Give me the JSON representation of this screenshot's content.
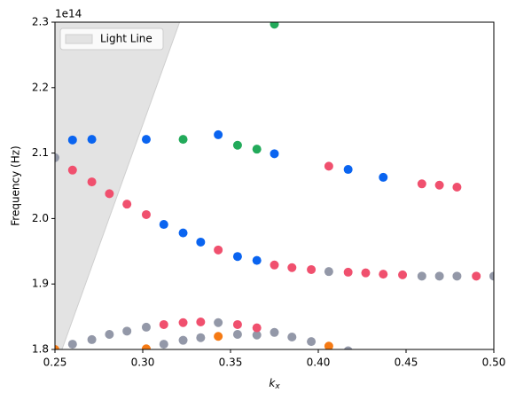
{
  "chart_data": {
    "type": "scatter",
    "xlabel": "kx",
    "ylabel": "Frequency (Hz)",
    "y_offset_label": "1e14",
    "xlim": [
      0.25,
      0.5
    ],
    "ylim": [
      1.8,
      2.3
    ],
    "xticks": [
      0.25,
      {
        "value": 0.3,
        "label": "0.30"
      },
      0.35,
      {
        "value": 0.4,
        "label": "0.40"
      },
      0.45,
      {
        "value": 0.5,
        "label": "0.50"
      }
    ],
    "yticks": [
      1.8,
      1.9,
      {
        "value": 2.0,
        "label": "2.0"
      },
      2.1,
      2.2,
      2.3
    ],
    "legend": "upper left",
    "series": [
      {
        "name": "Light Line",
        "fill": true,
        "color": "#e3e3e3",
        "x": [
          0.254,
          0.321
        ],
        "y": [
          1.8,
          2.3
        ]
      },
      {
        "color": "#9398a8",
        "x": [
          0.25,
          0.26,
          0.271,
          0.281,
          0.291,
          0.302,
          0.312,
          0.323,
          0.333,
          0.343,
          0.354,
          0.365,
          0.375,
          0.385,
          0.396,
          0.406,
          0.417,
          0.459,
          0.469,
          0.479,
          0.5
        ],
        "y": [
          2.093,
          1.808,
          1.815,
          1.823,
          1.828,
          1.834,
          1.808,
          1.814,
          1.818,
          1.841,
          1.823,
          1.822,
          1.826,
          1.819,
          1.812,
          1.919,
          1.798,
          1.912,
          1.912,
          1.912,
          1.912
        ]
      },
      {
        "color": "#0a64f0",
        "x": [
          0.26,
          0.271,
          0.302,
          0.343,
          0.375,
          0.417,
          0.437,
          0.312,
          0.323,
          0.333,
          0.354,
          0.365
        ],
        "y": [
          2.12,
          2.121,
          2.121,
          2.128,
          2.099,
          2.075,
          2.063,
          1.991,
          1.978,
          1.964,
          1.942,
          1.936
        ]
      },
      {
        "color": "#f0506e",
        "x": [
          0.26,
          0.271,
          0.281,
          0.291,
          0.302,
          0.343,
          0.375,
          0.385,
          0.396,
          0.417,
          0.427,
          0.437,
          0.448,
          0.49,
          0.406,
          0.459,
          0.469,
          0.479,
          0.312,
          0.323,
          0.333,
          0.354,
          0.365
        ],
        "y": [
          2.074,
          2.056,
          2.038,
          2.022,
          2.006,
          1.952,
          1.929,
          1.925,
          1.922,
          1.918,
          1.917,
          1.915,
          1.914,
          1.912,
          2.08,
          2.053,
          2.051,
          2.048,
          1.838,
          1.841,
          1.842,
          1.838,
          1.833
        ]
      },
      {
        "color": "#22aa5a",
        "x": [
          0.375,
          0.323,
          0.354,
          0.365
        ],
        "y": [
          2.297,
          2.121,
          2.112,
          2.106
        ]
      },
      {
        "color": "#f57a14",
        "x": [
          0.25,
          0.302,
          0.343,
          0.406
        ],
        "y": [
          1.8,
          1.801,
          1.82,
          1.805
        ]
      }
    ]
  }
}
